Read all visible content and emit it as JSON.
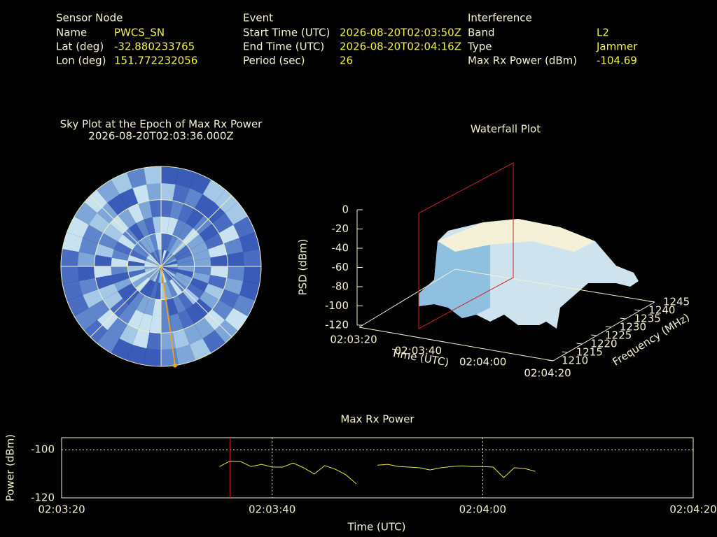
{
  "sensor_node": {
    "heading": "Sensor Node",
    "rows": [
      [
        "Name",
        "PWCS_SN"
      ],
      [
        "Lat (deg)",
        "-32.880233765"
      ],
      [
        "Lon (deg)",
        "151.772232056"
      ]
    ]
  },
  "event": {
    "heading": "Event",
    "rows": [
      [
        "Start Time (UTC)",
        "2026-08-20T02:03:50Z"
      ],
      [
        "End Time (UTC)",
        "2026-08-20T02:04:16Z"
      ],
      [
        "Period (sec)",
        "26"
      ]
    ]
  },
  "interference": {
    "heading": "Interference",
    "rows": [
      [
        "Band",
        "L2"
      ],
      [
        "Type",
        "Jammer"
      ],
      [
        "Max Rx Power (dBm)",
        "-104.69"
      ]
    ]
  },
  "chart_data": [
    {
      "type": "polar",
      "title": "Sky Plot at the Epoch of Max Rx Power",
      "subtitle": "2026-08-20T02:03:36.000Z",
      "azimuth": 172,
      "elevation": 0,
      "color": "#ffa500"
    },
    {
      "type": "surface3d",
      "title": "Waterfall Plot",
      "xlabel": "Time (UTC)",
      "ylabel": "Frequency (MHz)",
      "zlabel": "PSD (dBm)",
      "xticks": [
        "02:03:20",
        "02:03:40",
        "02:04:00",
        "02:04:20"
      ],
      "ylim": [
        1210,
        1245
      ],
      "yticks": [
        1210,
        1215,
        1220,
        1225,
        1230,
        1235,
        1240,
        1245
      ],
      "zlim": [
        -120,
        0
      ],
      "zticks": [
        0,
        -20,
        -40,
        -60,
        -80,
        -100,
        -120
      ]
    },
    {
      "type": "line",
      "title": "Max Rx Power",
      "xlabel": "Time (UTC)",
      "ylabel": "Power (dBm)",
      "color": "#e8e840",
      "grid": true,
      "xlim": [
        "02:03:20",
        "02:04:20"
      ],
      "xticks": [
        "02:03:20",
        "02:03:40",
        "02:04:00",
        "02:04:20"
      ],
      "ylim": [
        -120,
        -95
      ],
      "yticks": [
        -100,
        -120
      ],
      "marker_x": "02:03:36",
      "marker_color": "#cc2222",
      "x": [
        "02:03:35",
        "02:03:36",
        "02:03:37",
        "02:03:38",
        "02:03:39",
        "02:03:40",
        "02:03:41",
        "02:03:42",
        "02:03:43",
        "02:03:44",
        "02:03:45",
        "02:03:46",
        "02:03:47",
        "02:03:48",
        "02:03:49",
        "02:03:50",
        "02:03:51",
        "02:03:52",
        "02:03:53",
        "02:03:54",
        "02:03:55",
        "02:03:56",
        "02:03:57",
        "02:03:58",
        "02:03:59",
        "02:04:00",
        "02:04:01",
        "02:04:02",
        "02:04:03",
        "02:04:04",
        "02:04:05"
      ],
      "values": [
        -107.0,
        -104.7,
        -104.9,
        -107.0,
        -106.1,
        -107.2,
        -107.2,
        -105.5,
        -107.5,
        -110.1,
        -106.6,
        -108.1,
        -110.4,
        -114.2,
        null,
        -106.4,
        -106.1,
        -107.0,
        -107.2,
        -107.5,
        -108.4,
        -107.5,
        -107.0,
        -106.7,
        -107.0,
        -107.0,
        -107.2,
        -111.6,
        -107.5,
        -107.8,
        -109.0
      ]
    }
  ]
}
